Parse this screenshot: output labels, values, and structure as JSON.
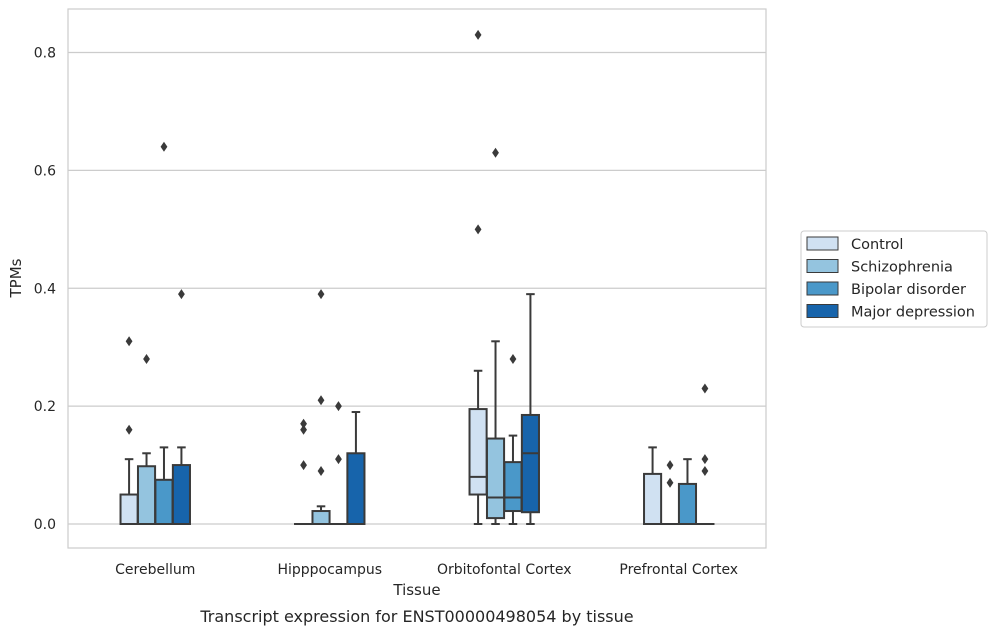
{
  "chart_data": {
    "type": "box",
    "title": "",
    "caption": "Transcript expression for ENST00000498054 by tissue",
    "xlabel": "Tissue",
    "ylabel": "TPMs",
    "ylim": [
      -0.04,
      0.87
    ],
    "yticks": [
      0.0,
      0.2,
      0.4,
      0.6,
      0.8
    ],
    "ytick_labels": [
      "0.0",
      "0.2",
      "0.4",
      "0.6",
      "0.8"
    ],
    "grid": "horizontal",
    "legend_position": "right",
    "categories": [
      "Cerebellum",
      "Hipppocampus",
      "Orbitofontal Cortex",
      "Prefrontal Cortex"
    ],
    "series": [
      {
        "name": "Control",
        "color": "#d0e1f2",
        "boxes": [
          {
            "q1": 0.0,
            "median": 0.0,
            "q3": 0.05,
            "whisker_low": 0.0,
            "whisker_high": 0.11,
            "outliers": [
              0.16,
              0.31
            ]
          },
          {
            "q1": 0.0,
            "median": 0.0,
            "q3": 0.0,
            "whisker_low": 0.0,
            "whisker_high": 0.0,
            "outliers": [
              0.1,
              0.16,
              0.17
            ]
          },
          {
            "q1": 0.05,
            "median": 0.08,
            "q3": 0.195,
            "whisker_low": 0.0,
            "whisker_high": 0.26,
            "outliers": [
              0.5,
              0.83
            ]
          },
          {
            "q1": 0.0,
            "median": 0.0,
            "q3": 0.085,
            "whisker_low": 0.0,
            "whisker_high": 0.13,
            "outliers": []
          }
        ]
      },
      {
        "name": "Schizophrenia",
        "color": "#94c4df",
        "boxes": [
          {
            "q1": 0.0,
            "median": 0.0,
            "q3": 0.098,
            "whisker_low": 0.0,
            "whisker_high": 0.12,
            "outliers": [
              0.28
            ]
          },
          {
            "q1": 0.0,
            "median": 0.0,
            "q3": 0.022,
            "whisker_low": 0.0,
            "whisker_high": 0.03,
            "outliers": [
              0.09,
              0.21,
              0.39
            ]
          },
          {
            "q1": 0.01,
            "median": 0.045,
            "q3": 0.145,
            "whisker_low": 0.0,
            "whisker_high": 0.31,
            "outliers": [
              0.63
            ]
          },
          {
            "q1": 0.0,
            "median": 0.0,
            "q3": 0.0,
            "whisker_low": 0.0,
            "whisker_high": 0.0,
            "outliers": [
              0.07,
              0.1
            ]
          }
        ]
      },
      {
        "name": "Bipolar disorder",
        "color": "#4a98c9",
        "boxes": [
          {
            "q1": 0.0,
            "median": 0.0,
            "q3": 0.075,
            "whisker_low": 0.0,
            "whisker_high": 0.13,
            "outliers": [
              0.64
            ]
          },
          {
            "q1": 0.0,
            "median": 0.0,
            "q3": 0.0,
            "whisker_low": 0.0,
            "whisker_high": 0.0,
            "outliers": [
              0.11,
              0.2
            ]
          },
          {
            "q1": 0.022,
            "median": 0.045,
            "q3": 0.105,
            "whisker_low": 0.0,
            "whisker_high": 0.15,
            "outliers": [
              0.28
            ]
          },
          {
            "q1": 0.0,
            "median": 0.0,
            "q3": 0.068,
            "whisker_low": 0.0,
            "whisker_high": 0.11,
            "outliers": []
          }
        ]
      },
      {
        "name": "Major depression",
        "color": "#1764ab",
        "boxes": [
          {
            "q1": 0.0,
            "median": 0.0,
            "q3": 0.1,
            "whisker_low": 0.0,
            "whisker_high": 0.13,
            "outliers": [
              0.39
            ]
          },
          {
            "q1": 0.0,
            "median": 0.0,
            "q3": 0.12,
            "whisker_low": 0.0,
            "whisker_high": 0.19,
            "outliers": []
          },
          {
            "q1": 0.02,
            "median": 0.12,
            "q3": 0.185,
            "whisker_low": 0.0,
            "whisker_high": 0.39,
            "outliers": []
          },
          {
            "q1": 0.0,
            "median": 0.0,
            "q3": 0.0,
            "whisker_low": 0.0,
            "whisker_high": 0.0,
            "outliers": [
              0.09,
              0.11,
              0.23
            ]
          }
        ]
      }
    ]
  }
}
